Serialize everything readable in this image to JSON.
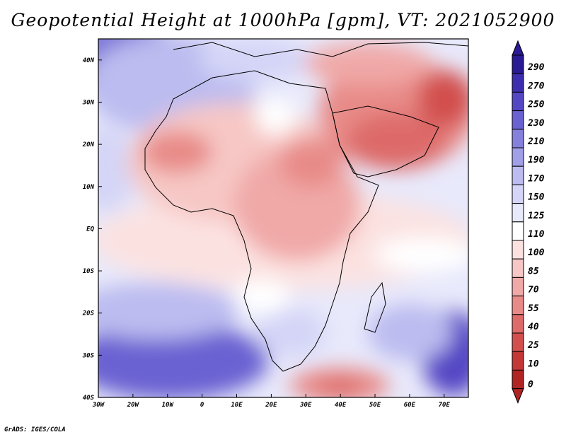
{
  "title": "Geopotential Height at 1000hPa [gpm], VT: 2021052900",
  "credit": "GrADS: IGES/COLA",
  "map": {
    "lon_range": [
      -30,
      77
    ],
    "lat_range": [
      -40,
      45
    ],
    "lon_ticks": [
      "30W",
      "20W",
      "10W",
      "0",
      "10E",
      "20E",
      "30E",
      "40E",
      "50E",
      "60E",
      "70E"
    ],
    "lat_ticks": [
      "40N",
      "30N",
      "20N",
      "10N",
      "EQ",
      "10S",
      "20S",
      "30S",
      "40S"
    ]
  },
  "colorbar": {
    "labels": [
      "290",
      "270",
      "250",
      "230",
      "210",
      "190",
      "170",
      "150",
      "125",
      "110",
      "100",
      "85",
      "70",
      "55",
      "40",
      "25",
      "10",
      "0"
    ],
    "colors": [
      "#2a1a93",
      "#3d2eb0",
      "#5447c4",
      "#6b62d2",
      "#8680dd",
      "#a19fe7",
      "#bcbcf0",
      "#d4d5f7",
      "#e8e9fb",
      "#ffffff",
      "#fbe2e1",
      "#f6c7c5",
      "#f0a9a7",
      "#e88b88",
      "#dd6b69",
      "#d24f4e",
      "#c33737",
      "#b02424"
    ]
  }
}
